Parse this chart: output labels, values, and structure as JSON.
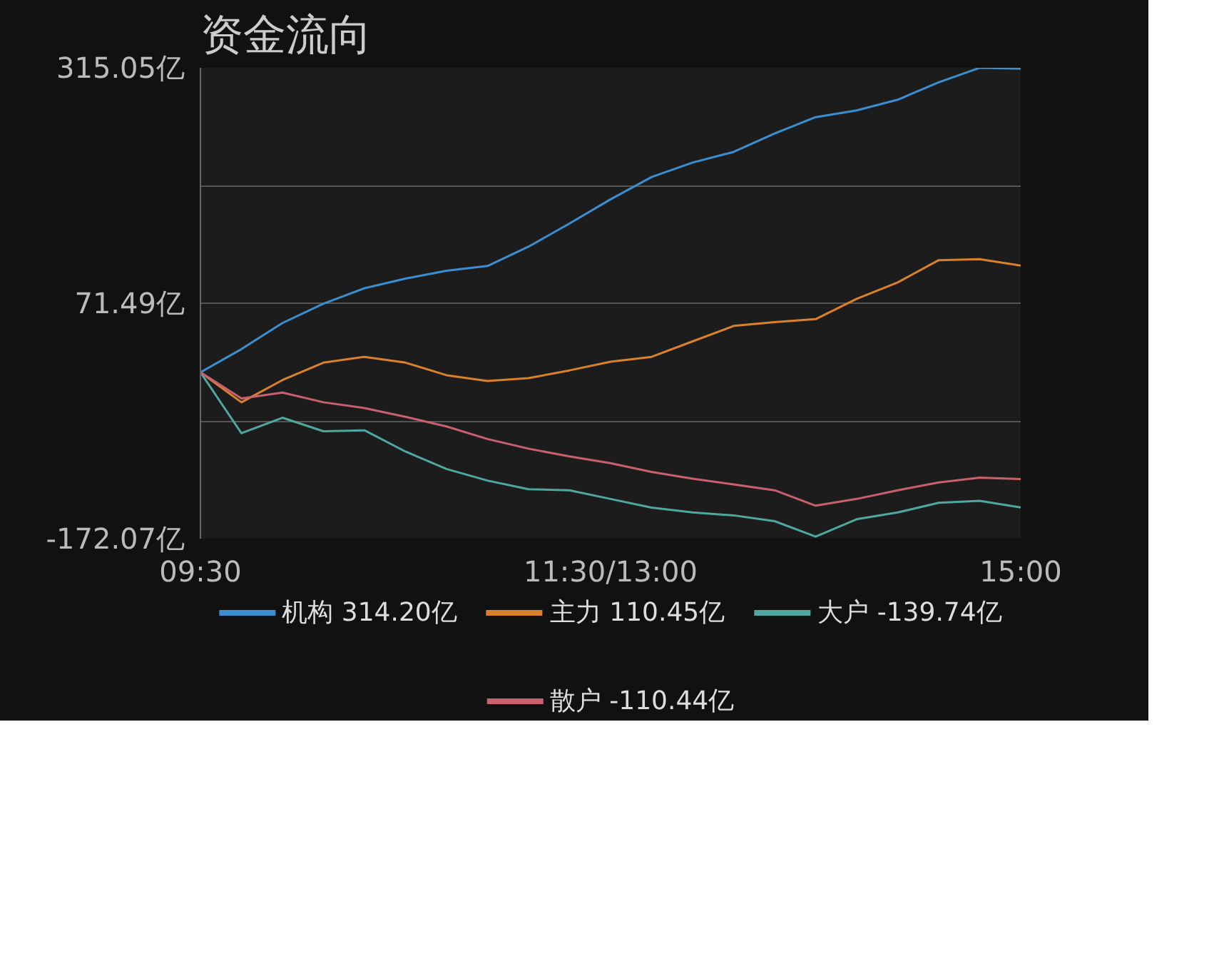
{
  "chart_data": {
    "type": "line",
    "title": "资金流向",
    "categories": [
      "09:30",
      null,
      null,
      null,
      null,
      null,
      null,
      null,
      null,
      null,
      "11:30/13:00",
      null,
      null,
      null,
      null,
      null,
      null,
      null,
      null,
      null,
      "15:00"
    ],
    "ylim": [
      -172.07,
      315.05
    ],
    "yticks": [
      {
        "value": -172.07,
        "label": "-172.07亿"
      },
      {
        "value": -50.29,
        "label": null
      },
      {
        "value": 71.49,
        "label": "71.49亿"
      },
      {
        "value": 193.27,
        "label": null
      },
      {
        "value": 315.05,
        "label": "315.05亿"
      }
    ],
    "grid": "y",
    "legend": "bottom",
    "marker": "none",
    "line_style": "solid",
    "series": [
      {
        "name": "机构 314.20亿",
        "color": "#3b8fd0",
        "values": [
          0,
          24,
          51,
          71,
          87,
          97,
          105,
          110,
          130,
          154,
          179,
          202,
          217,
          228,
          247,
          264,
          271,
          282,
          300,
          315,
          314.2
        ]
      },
      {
        "name": "主力 110.45亿",
        "color": "#d9822b",
        "values": [
          0,
          -31,
          -8,
          10,
          16,
          10,
          -3,
          -9,
          -6,
          2,
          11,
          16,
          32,
          48,
          52,
          55,
          76,
          93,
          116,
          117,
          110.45
        ]
      },
      {
        "name": "大户 -139.74亿",
        "color": "#4fa8a0",
        "values": [
          0,
          -63,
          -47,
          -61,
          -60,
          -82,
          -100,
          -112,
          -121,
          -122,
          -131,
          -140,
          -145,
          -148,
          -154,
          -170,
          -152,
          -145,
          -135,
          -133,
          -139.74
        ]
      },
      {
        "name": "散户 -110.44亿",
        "color": "#c9606e",
        "values": [
          0,
          -27,
          -21,
          -31,
          -37,
          -46,
          -56,
          -69,
          -79,
          -87,
          -94,
          -103,
          -110,
          -116,
          -122,
          -138,
          -131,
          -122,
          -114,
          -109,
          -110.44
        ]
      }
    ]
  }
}
